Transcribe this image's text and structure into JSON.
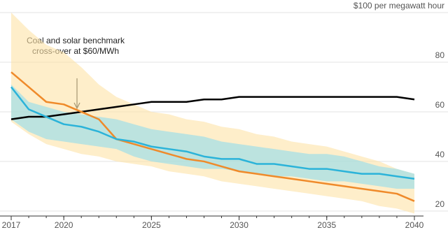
{
  "chart_data": {
    "type": "line",
    "x": [
      2017,
      2018,
      2019,
      2020,
      2021,
      2022,
      2023,
      2024,
      2025,
      2026,
      2027,
      2028,
      2029,
      2030,
      2031,
      2032,
      2033,
      2034,
      2035,
      2036,
      2037,
      2038,
      2039,
      2040
    ],
    "xlim": [
      2017,
      2040
    ],
    "xticks": [
      2017,
      2020,
      2025,
      2030,
      2035,
      2040
    ],
    "ylim": [
      18,
      100
    ],
    "yticks": [
      20,
      40,
      60,
      80,
      {
        "value": 100,
        "label": "$100 per megawatt hour"
      }
    ],
    "grid": true,
    "bands": [
      {
        "color": "#fde3a7",
        "lower": [
          56,
          51,
          47,
          45,
          43,
          42,
          40,
          39,
          38,
          36,
          35,
          34,
          32,
          31,
          30,
          29,
          28,
          27,
          26,
          25,
          24,
          22,
          21,
          19
        ],
        "upper": [
          100,
          93,
          87,
          84,
          78,
          71,
          66,
          63,
          60,
          59,
          57,
          56,
          54,
          53,
          51,
          50,
          48,
          47,
          46,
          44,
          42,
          40,
          37,
          35
        ]
      },
      {
        "color": "#8fdcec",
        "lower": [
          57,
          52,
          49,
          48,
          47,
          46,
          45,
          42,
          40,
          39,
          38,
          37,
          37,
          36,
          35,
          34,
          34,
          33,
          32,
          32,
          31,
          30,
          29,
          29
        ],
        "upper": [
          71,
          64,
          62,
          60,
          59,
          58,
          57,
          55,
          53,
          52,
          51,
          50,
          48,
          47,
          46,
          45,
          44,
          43,
          43,
          42,
          40,
          38,
          37,
          35
        ]
      }
    ],
    "series": [
      {
        "color": "#000000",
        "values": [
          57,
          58,
          58,
          59,
          60,
          61,
          62,
          63,
          64,
          64,
          64,
          65,
          65,
          66,
          66,
          66,
          66,
          66,
          66,
          66,
          66,
          66,
          66,
          65
        ]
      },
      {
        "color": "#ef8a2a",
        "values": [
          76,
          70,
          64,
          63,
          60,
          57,
          49,
          47,
          45,
          43,
          41,
          40,
          38,
          36,
          35,
          34,
          33,
          32,
          31,
          30,
          29,
          28,
          27,
          24
        ]
      },
      {
        "color": "#2bb3d9",
        "values": [
          70,
          61,
          58,
          55,
          54,
          52,
          49,
          48,
          46,
          45,
          44,
          42,
          41,
          41,
          39,
          39,
          38,
          37,
          37,
          36,
          35,
          35,
          34,
          33
        ]
      }
    ],
    "annotation": [
      "Coal and solar benchmark",
      "cross-over at $60/MWh"
    ]
  }
}
